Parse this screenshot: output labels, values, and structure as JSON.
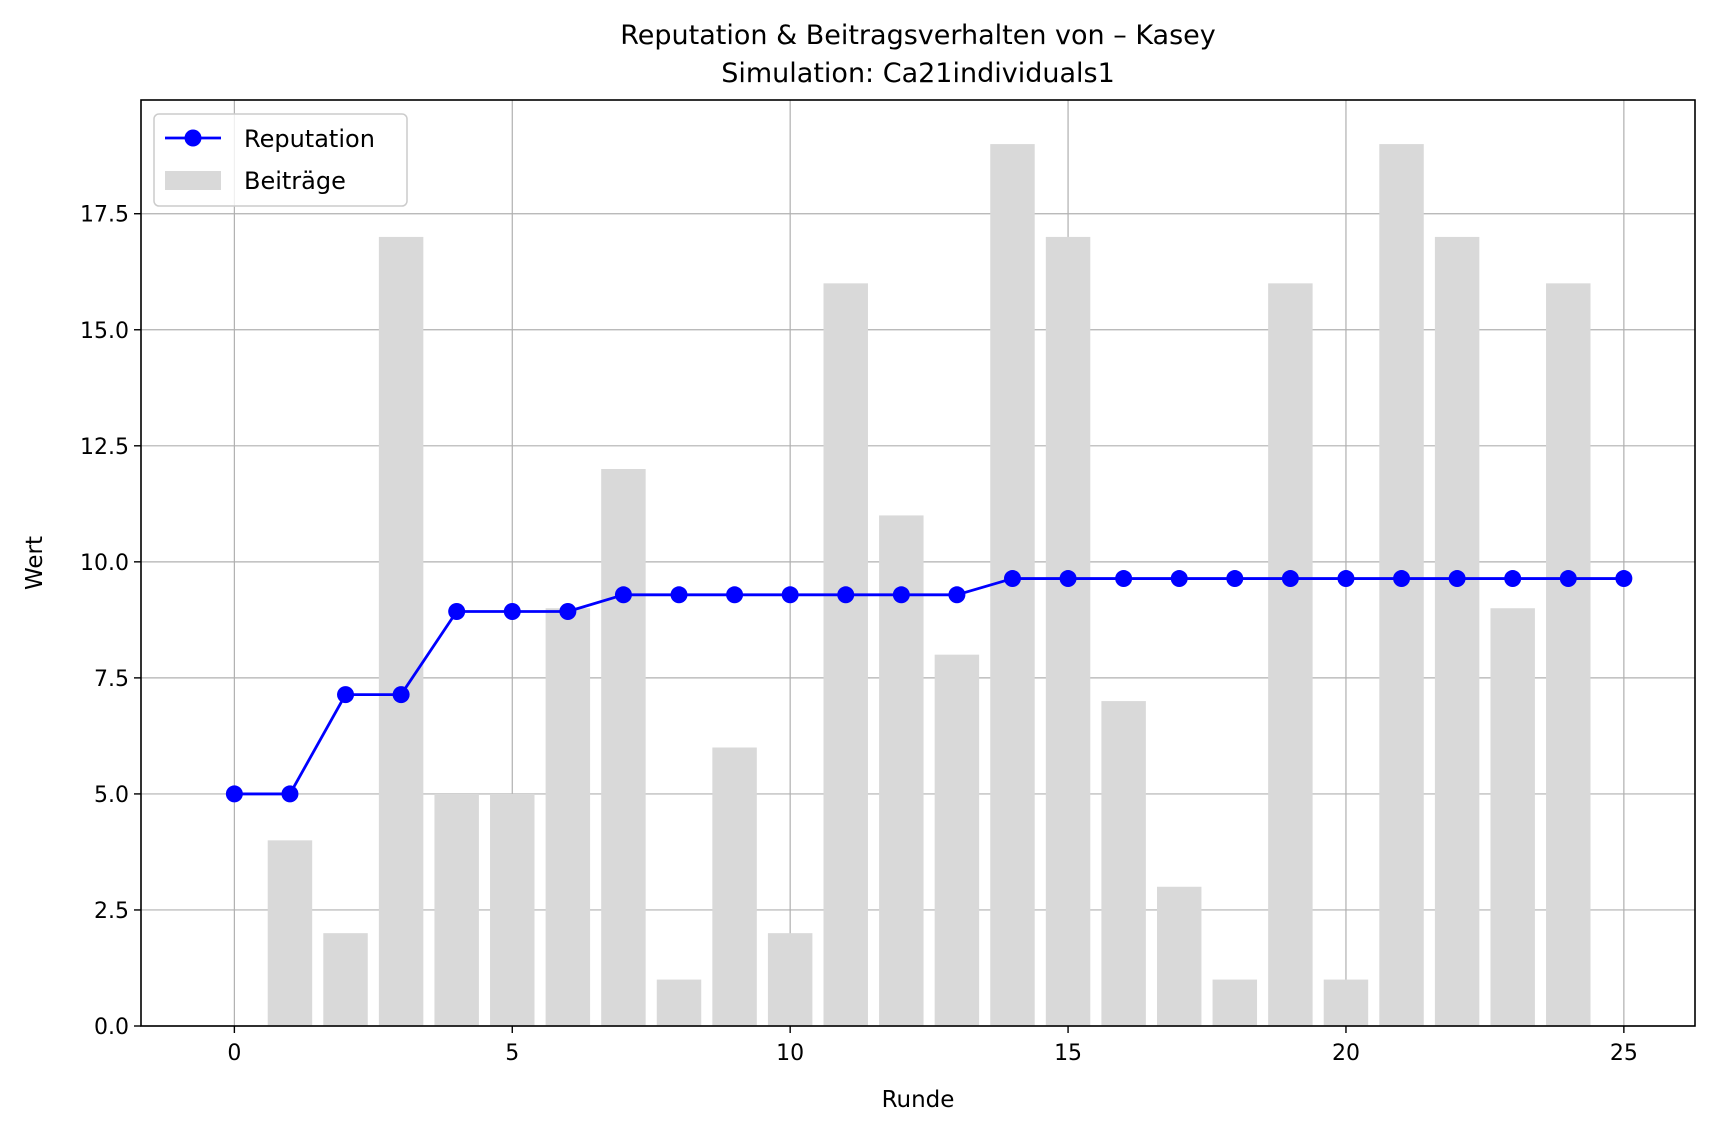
{
  "chart_data": {
    "type": "bar",
    "title": "Reputation & Beitragsverhalten von – Kasey",
    "subtitle": "Simulation: Ca21individuals1",
    "xlabel": "Runde",
    "ylabel": "Wert",
    "xlim": [
      -1.68,
      26.28
    ],
    "ylim": [
      0,
      19.95
    ],
    "xticks": [
      0,
      5,
      10,
      15,
      20,
      25
    ],
    "xtick_labels": [
      "0",
      "5",
      "10",
      "15",
      "20",
      "25"
    ],
    "yticks": [
      0,
      2.5,
      5,
      7.5,
      10,
      12.5,
      15,
      17.5
    ],
    "ytick_labels": [
      "0.0",
      "2.5",
      "5.0",
      "7.5",
      "10.0",
      "12.5",
      "15.0",
      "17.5"
    ],
    "grid": true,
    "legend_position": "top-left",
    "bar_width": 0.8,
    "series": [
      {
        "name": "Beiträge",
        "type": "bar",
        "color": "#d9d9d9",
        "x": [
          1,
          2,
          3,
          4,
          5,
          6,
          7,
          8,
          9,
          10,
          11,
          12,
          13,
          14,
          15,
          16,
          17,
          18,
          19,
          20,
          21,
          22,
          23,
          24
        ],
        "values": [
          4,
          2,
          17,
          5,
          5,
          9,
          12,
          1,
          6,
          2,
          16,
          11,
          8,
          19,
          17,
          7,
          3,
          1,
          16,
          1,
          19,
          17,
          9,
          16
        ]
      },
      {
        "name": "Reputation",
        "type": "line",
        "color": "#0000ff",
        "x": [
          0,
          1,
          2,
          3,
          4,
          5,
          6,
          7,
          8,
          9,
          10,
          11,
          12,
          13,
          14,
          15,
          16,
          17,
          18,
          19,
          20,
          21,
          22,
          23,
          24,
          25
        ],
        "values": [
          5.0,
          5.0,
          7.14,
          7.14,
          8.93,
          8.93,
          8.93,
          9.29,
          9.29,
          9.29,
          9.29,
          9.29,
          9.29,
          9.29,
          9.64,
          9.64,
          9.64,
          9.64,
          9.64,
          9.64,
          9.64,
          9.64,
          9.64,
          9.64,
          9.64,
          9.64
        ]
      }
    ]
  }
}
